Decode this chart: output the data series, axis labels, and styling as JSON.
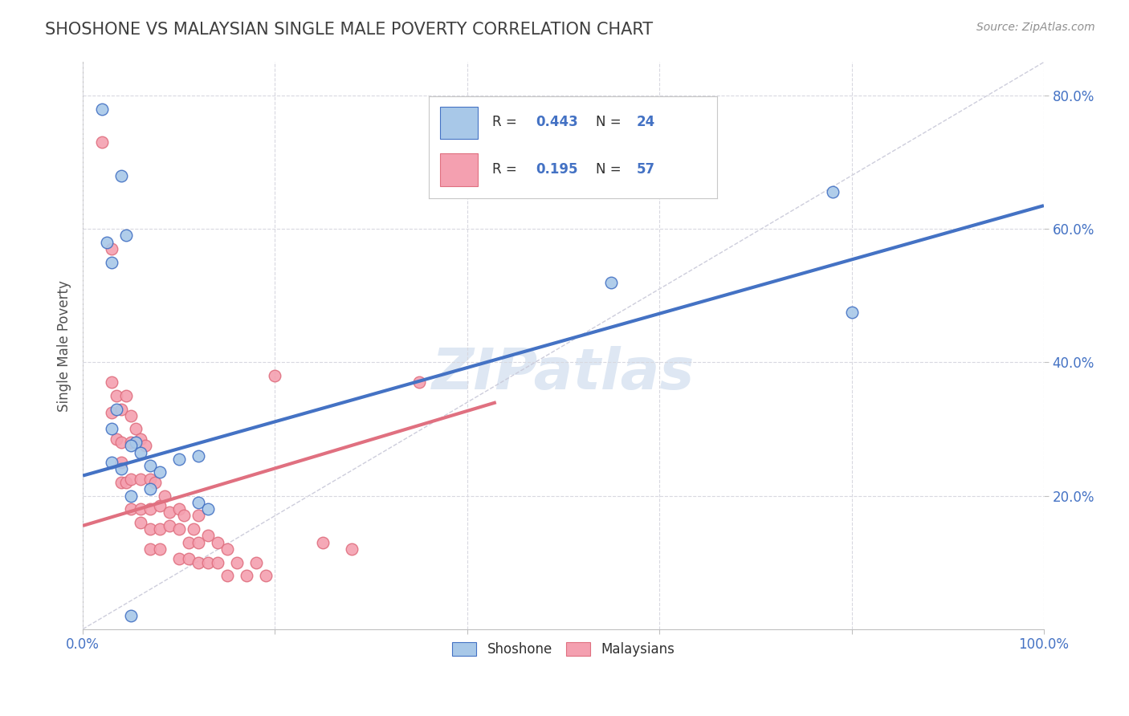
{
  "title": "SHOSHONE VS MALAYSIAN SINGLE MALE POVERTY CORRELATION CHART",
  "source": "Source: ZipAtlas.com",
  "ylabel": "Single Male Poverty",
  "xlim": [
    0.0,
    1.0
  ],
  "ylim": [
    0.0,
    0.85
  ],
  "xticks": [
    0.0,
    0.2,
    0.4,
    0.6,
    0.8,
    1.0
  ],
  "xticklabels": [
    "0.0%",
    "",
    "",
    "",
    "",
    "100.0%"
  ],
  "yticks": [
    0.2,
    0.4,
    0.6,
    0.8
  ],
  "yticklabels": [
    "20.0%",
    "40.0%",
    "60.0%",
    "80.0%"
  ],
  "shoshone_R": 0.443,
  "shoshone_N": 24,
  "malaysian_R": 0.195,
  "malaysian_N": 57,
  "shoshone_color": "#a8c8e8",
  "malaysian_color": "#f4a0b0",
  "shoshone_line_color": "#4472c4",
  "malaysian_line_color": "#e07080",
  "ref_line_color": "#c8c8d8",
  "grid_color": "#d8d8e0",
  "title_color": "#404040",
  "axis_label_color": "#505050",
  "tick_color": "#4472c4",
  "legend_R_color": "#4472c4",
  "legend_label_color": "#303030",
  "watermark_color": "#c8d8ec",
  "shoshone_x": [
    0.02,
    0.04,
    0.045,
    0.025,
    0.03,
    0.035,
    0.03,
    0.055,
    0.05,
    0.06,
    0.1,
    0.07,
    0.08,
    0.07,
    0.05,
    0.12,
    0.13,
    0.78,
    0.8,
    0.55,
    0.12,
    0.03,
    0.04,
    0.05
  ],
  "shoshone_y": [
    0.78,
    0.68,
    0.59,
    0.58,
    0.55,
    0.33,
    0.3,
    0.28,
    0.275,
    0.265,
    0.255,
    0.245,
    0.235,
    0.21,
    0.2,
    0.19,
    0.18,
    0.655,
    0.475,
    0.52,
    0.26,
    0.25,
    0.24,
    0.02
  ],
  "malaysian_x": [
    0.02,
    0.03,
    0.03,
    0.03,
    0.035,
    0.035,
    0.04,
    0.04,
    0.04,
    0.04,
    0.045,
    0.045,
    0.05,
    0.05,
    0.05,
    0.05,
    0.055,
    0.06,
    0.06,
    0.06,
    0.06,
    0.065,
    0.07,
    0.07,
    0.07,
    0.07,
    0.075,
    0.08,
    0.08,
    0.08,
    0.085,
    0.09,
    0.09,
    0.1,
    0.1,
    0.1,
    0.105,
    0.11,
    0.11,
    0.115,
    0.12,
    0.12,
    0.12,
    0.13,
    0.13,
    0.14,
    0.14,
    0.15,
    0.15,
    0.16,
    0.17,
    0.18,
    0.19,
    0.2,
    0.25,
    0.28,
    0.35
  ],
  "malaysian_y": [
    0.73,
    0.57,
    0.37,
    0.325,
    0.285,
    0.35,
    0.33,
    0.28,
    0.25,
    0.22,
    0.35,
    0.22,
    0.32,
    0.28,
    0.225,
    0.18,
    0.3,
    0.285,
    0.225,
    0.18,
    0.16,
    0.275,
    0.225,
    0.18,
    0.15,
    0.12,
    0.22,
    0.185,
    0.15,
    0.12,
    0.2,
    0.155,
    0.175,
    0.18,
    0.15,
    0.105,
    0.17,
    0.13,
    0.105,
    0.15,
    0.13,
    0.1,
    0.17,
    0.14,
    0.1,
    0.13,
    0.1,
    0.12,
    0.08,
    0.1,
    0.08,
    0.1,
    0.08,
    0.38,
    0.13,
    0.12,
    0.37
  ],
  "shoshone_line_x": [
    0.0,
    1.0
  ],
  "shoshone_line_y": [
    0.23,
    0.635
  ],
  "malaysian_line_x": [
    0.0,
    0.43
  ],
  "malaysian_line_y": [
    0.155,
    0.34
  ],
  "ref_line_x": [
    0.0,
    1.0
  ],
  "ref_line_y": [
    0.0,
    0.85
  ],
  "fig_width": 14.06,
  "fig_height": 8.92,
  "dpi": 100
}
